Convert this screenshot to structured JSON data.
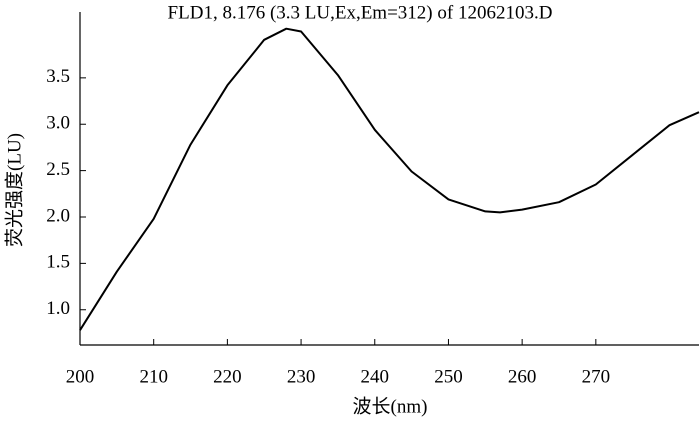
{
  "chart_data": {
    "type": "line",
    "title": "FLD1, 8.176 (3.3 LU,Ex,Em=312) of 12062103.D",
    "x_label": "波长(nm)",
    "y_label": "荧光强度(LU)",
    "x": [
      200,
      205,
      210,
      215,
      220,
      225,
      228,
      230,
      235,
      240,
      245,
      250,
      255,
      257,
      260,
      265,
      270,
      275,
      280,
      284
    ],
    "series": [
      {
        "name": "FLD1",
        "color": "#000000",
        "values": [
          0.78,
          1.41,
          1.98,
          2.78,
          3.42,
          3.91,
          4.03,
          4.0,
          3.53,
          2.94,
          2.49,
          2.19,
          2.06,
          2.05,
          2.08,
          2.16,
          2.35,
          2.67,
          2.99,
          3.13
        ]
      }
    ],
    "xlim": [
      200,
      284
    ],
    "xticks": [
      200,
      210,
      220,
      230,
      240,
      250,
      260,
      270
    ],
    "ylim": [
      0.62,
      4.21
    ],
    "yticks": [
      {
        "value": 1.0,
        "label": "1.0"
      },
      1.5,
      {
        "value": 2.0,
        "label": "2.0"
      },
      2.5,
      {
        "value": 3.0,
        "label": "3.0"
      },
      3.5
    ],
    "grid": false
  }
}
